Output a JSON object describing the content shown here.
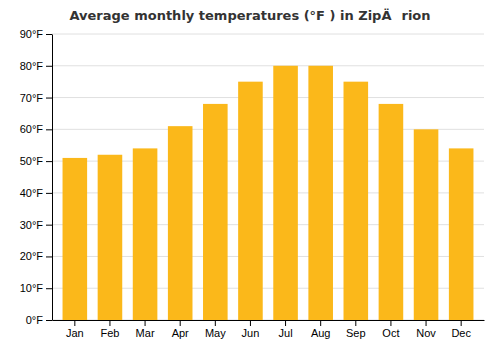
{
  "chart_data": {
    "type": "bar",
    "title": "Average monthly temperatures (°F ) in ZipÄrion",
    "categories": [
      "Jan",
      "Feb",
      "Mar",
      "Apr",
      "May",
      "Jun",
      "Jul",
      "Aug",
      "Sep",
      "Oct",
      "Nov",
      "Dec"
    ],
    "values": [
      51,
      52,
      54,
      61,
      68,
      75,
      80,
      80,
      75,
      68,
      60,
      54
    ],
    "color": "#FBB81A",
    "ylim": [
      0,
      90
    ],
    "yticks": [
      {
        "value": 0,
        "label": "0°F"
      },
      {
        "value": 10,
        "label": "10°F"
      },
      {
        "value": 20,
        "label": "20°F"
      },
      {
        "value": 30,
        "label": "30°F"
      },
      {
        "value": 40,
        "label": "40°F"
      },
      {
        "value": 50,
        "label": "50°F"
      },
      {
        "value": 60,
        "label": "60°F"
      },
      {
        "value": 70,
        "label": "70°F"
      },
      {
        "value": 80,
        "label": "80°F"
      },
      {
        "value": 90,
        "label": "90°F"
      }
    ],
    "grid": true
  }
}
